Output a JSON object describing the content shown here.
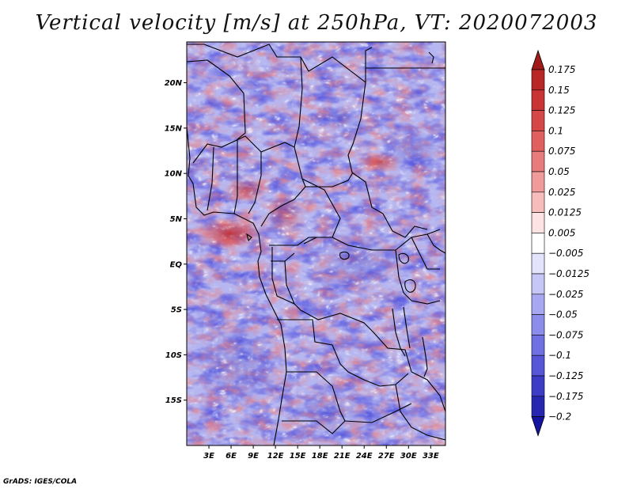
{
  "title": "Vertical velocity [m/s] at 250hPa, VT: 2020072003",
  "footer": "GrADS: IGES/COLA",
  "map": {
    "lon_range": [
      0,
      35
    ],
    "lat_range": [
      -20,
      24.5
    ],
    "lon_ticks": [
      {
        "value": 3,
        "label": "3E"
      },
      {
        "value": 6,
        "label": "6E"
      },
      {
        "value": 9,
        "label": "9E"
      },
      {
        "value": 12,
        "label": "12E"
      },
      {
        "value": 15,
        "label": "15E"
      },
      {
        "value": 18,
        "label": "18E"
      },
      {
        "value": 21,
        "label": "21E"
      },
      {
        "value": 24,
        "label": "24E"
      },
      {
        "value": 27,
        "label": "27E"
      },
      {
        "value": 30,
        "label": "30E"
      },
      {
        "value": 33,
        "label": "33E"
      }
    ],
    "lat_ticks": [
      {
        "value": 20,
        "label": "20N"
      },
      {
        "value": 15,
        "label": "15N"
      },
      {
        "value": 10,
        "label": "10N"
      },
      {
        "value": 5,
        "label": "5N"
      },
      {
        "value": 0,
        "label": "EQ"
      },
      {
        "value": -5,
        "label": "5S"
      },
      {
        "value": -10,
        "label": "10S"
      },
      {
        "value": -15,
        "label": "15S"
      }
    ]
  },
  "colorbar": {
    "labels": [
      "0.175",
      "0.15",
      "0.125",
      "0.1",
      "0.075",
      "0.05",
      "0.025",
      "0.0125",
      "0.005",
      "−0.005",
      "−0.0125",
      "−0.025",
      "−0.05",
      "−0.075",
      "−0.1",
      "−0.125",
      "−0.175",
      "−0.2"
    ],
    "colors": [
      "#a11a1a",
      "#b82626",
      "#c93535",
      "#d64848",
      "#e06060",
      "#e87b7b",
      "#f09a9a",
      "#f7bcbc",
      "#fde3e3",
      "#ffffff",
      "#e3e3fb",
      "#c6c6f7",
      "#a8a8f2",
      "#8c8ceb",
      "#7070e2",
      "#5656d6",
      "#3c3cc6",
      "#2626b0",
      "#1414a0"
    ]
  }
}
